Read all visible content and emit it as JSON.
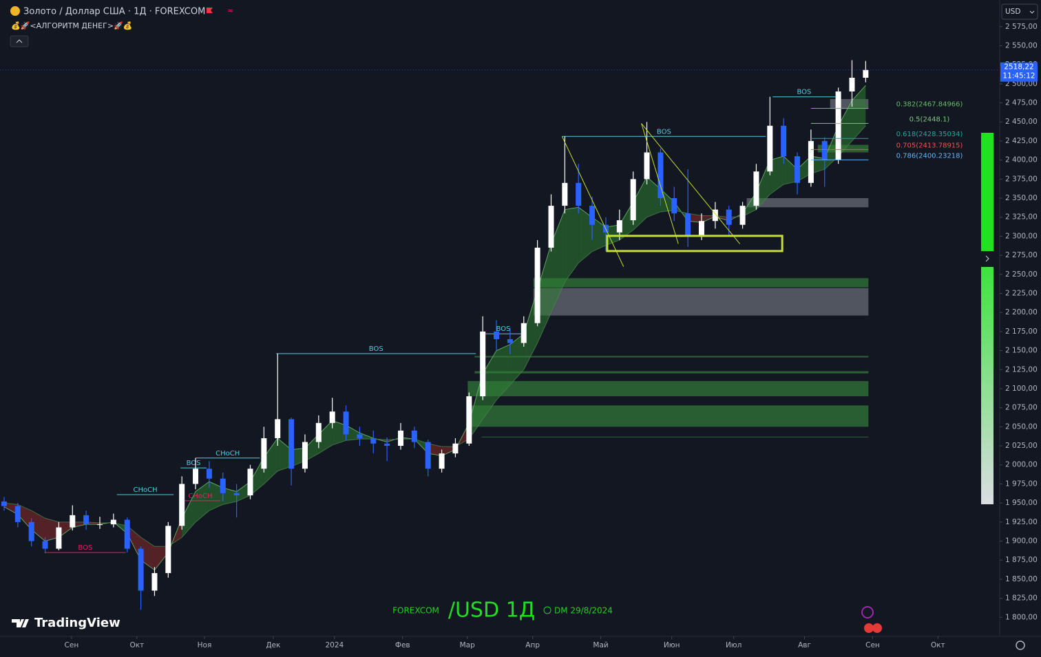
{
  "header": {
    "title": "Золото / Доллар США · 1Д · FOREXCOM",
    "indicator": "💰🚀<АЛГОРИТМ ДЕНЕГ>🚀💰",
    "currency": "USD"
  },
  "last_price": {
    "label": "2518,22",
    "timer": "11:45:12"
  },
  "watermark": {
    "exchange": "FOREXCOM",
    "symbol": "/USD 1Д",
    "date": "DM 29/8/2024"
  },
  "brand": "TradingView",
  "chart_data": {
    "type": "candlestick",
    "up_color": "#ffffff",
    "down_color": "#2962ff",
    "grid": false,
    "xlim": [
      -0.3,
      72.8
    ],
    "ylim": [
      1775,
      2610
    ],
    "xticks": [
      {
        "value": 4.93,
        "label": "Сен"
      },
      {
        "value": 9.71,
        "label": "Окт"
      },
      {
        "value": 14.65,
        "label": "Ноя"
      },
      {
        "value": 19.68,
        "label": "Дек"
      },
      {
        "value": 24.16,
        "label": "2024"
      },
      {
        "value": 29.14,
        "label": "Фев"
      },
      {
        "value": 33.87,
        "label": "Мар"
      },
      {
        "value": 38.65,
        "label": "Апр"
      },
      {
        "value": 43.63,
        "label": "Май"
      },
      {
        "value": 48.82,
        "label": "Июн"
      },
      {
        "value": 53.35,
        "label": "Июл"
      },
      {
        "value": 58.53,
        "label": "Авг"
      },
      {
        "value": 63.51,
        "label": "Сен"
      },
      {
        "value": 68.29,
        "label": "Окт"
      }
    ],
    "yticks": [
      {
        "value": 1800,
        "label": "1 800,00"
      },
      {
        "value": 1825,
        "label": "1 825,00"
      },
      {
        "value": 1850,
        "label": "1 850,00"
      },
      {
        "value": 1875,
        "label": "1 875,00"
      },
      {
        "value": 1900,
        "label": "1 900,00"
      },
      {
        "value": 1925,
        "label": "1 925,00"
      },
      {
        "value": 1950,
        "label": "1 950,00"
      },
      {
        "value": 1975,
        "label": "1 975,00"
      },
      {
        "value": 2000,
        "label": "2 000,00"
      },
      {
        "value": 2025,
        "label": "2 025,00"
      },
      {
        "value": 2050,
        "label": "2 050,00"
      },
      {
        "value": 2075,
        "label": "2 075,00"
      },
      {
        "value": 2100,
        "label": "2 100,00"
      },
      {
        "value": 2125,
        "label": "2 125,00"
      },
      {
        "value": 2150,
        "label": "2 150,00"
      },
      {
        "value": 2175,
        "label": "2 175,00"
      },
      {
        "value": 2200,
        "label": "2 200,00"
      },
      {
        "value": 2225,
        "label": "2 225,00"
      },
      {
        "value": 2250,
        "label": "2 250,00"
      },
      {
        "value": 2275,
        "label": "2 275,00"
      },
      {
        "value": 2300,
        "label": "2 300,00"
      },
      {
        "value": 2325,
        "label": "2 325,00"
      },
      {
        "value": 2350,
        "label": "2 350,00"
      },
      {
        "value": 2375,
        "label": "2 375,00"
      },
      {
        "value": 2400,
        "label": "2 400,00"
      },
      {
        "value": 2425,
        "label": "2 425,00"
      },
      {
        "value": 2450,
        "label": "2 450,00"
      },
      {
        "value": 2475,
        "label": "2 475,00"
      },
      {
        "value": 2500,
        "label": "2 500,00"
      },
      {
        "value": 2525,
        "label": "2 525,00"
      },
      {
        "value": 2550,
        "label": "2 550,00"
      },
      {
        "value": 2575,
        "label": "2 575,00"
      }
    ],
    "ohlc": [
      [
        1952,
        1958,
        1940,
        1946
      ],
      [
        1946,
        1950,
        1918,
        1925
      ],
      [
        1925,
        1930,
        1893,
        1900
      ],
      [
        1900,
        1905,
        1884,
        1890
      ],
      [
        1890,
        1925,
        1888,
        1918
      ],
      [
        1918,
        1947,
        1914,
        1934
      ],
      [
        1934,
        1940,
        1915,
        1922
      ],
      [
        1922,
        1932,
        1916,
        1922
      ],
      [
        1922,
        1936,
        1918,
        1928
      ],
      [
        1928,
        1931,
        1885,
        1890
      ],
      [
        1890,
        1893,
        1810,
        1835
      ],
      [
        1835,
        1866,
        1828,
        1858
      ],
      [
        1858,
        1925,
        1852,
        1920
      ],
      [
        1920,
        1985,
        1915,
        1975
      ],
      [
        1975,
        2009,
        1968,
        1995
      ],
      [
        1995,
        2005,
        1970,
        1982
      ],
      [
        1982,
        1990,
        1952,
        1963
      ],
      [
        1963,
        1975,
        1931,
        1960
      ],
      [
        1960,
        2000,
        1955,
        1995
      ],
      [
        1995,
        2050,
        1990,
        2035
      ],
      [
        2035,
        2146,
        2025,
        2060
      ],
      [
        2060,
        2062,
        1973,
        1995
      ],
      [
        1995,
        2040,
        1990,
        2030
      ],
      [
        2030,
        2065,
        2022,
        2055
      ],
      [
        2055,
        2088,
        2048,
        2070
      ],
      [
        2070,
        2078,
        2032,
        2040
      ],
      [
        2040,
        2050,
        2025,
        2035
      ],
      [
        2035,
        2045,
        2015,
        2028
      ],
      [
        2028,
        2036,
        2005,
        2025
      ],
      [
        2025,
        2055,
        2020,
        2045
      ],
      [
        2045,
        2050,
        2022,
        2030
      ],
      [
        2030,
        2033,
        1985,
        1995
      ],
      [
        1995,
        2020,
        1990,
        2015
      ],
      [
        2015,
        2035,
        2010,
        2028
      ],
      [
        2028,
        2095,
        2025,
        2090
      ],
      [
        2090,
        2195,
        2085,
        2175
      ],
      [
        2175,
        2190,
        2150,
        2165
      ],
      [
        2165,
        2180,
        2145,
        2160
      ],
      [
        2160,
        2195,
        2155,
        2186
      ],
      [
        2186,
        2295,
        2182,
        2285
      ],
      [
        2285,
        2355,
        2280,
        2340
      ],
      [
        2340,
        2431,
        2330,
        2370
      ],
      [
        2370,
        2395,
        2330,
        2340
      ],
      [
        2340,
        2352,
        2295,
        2315
      ],
      [
        2315,
        2325,
        2280,
        2305
      ],
      [
        2305,
        2335,
        2295,
        2321
      ],
      [
        2321,
        2385,
        2315,
        2375
      ],
      [
        2375,
        2450,
        2368,
        2410
      ],
      [
        2410,
        2415,
        2340,
        2350
      ],
      [
        2350,
        2365,
        2320,
        2330
      ],
      [
        2330,
        2388,
        2286,
        2300
      ],
      [
        2300,
        2330,
        2295,
        2320
      ],
      [
        2320,
        2345,
        2310,
        2335
      ],
      [
        2335,
        2340,
        2300,
        2315
      ],
      [
        2315,
        2345,
        2310,
        2340
      ],
      [
        2340,
        2395,
        2335,
        2385
      ],
      [
        2385,
        2483,
        2380,
        2445
      ],
      [
        2445,
        2455,
        2395,
        2405
      ],
      [
        2405,
        2410,
        2355,
        2370
      ],
      [
        2370,
        2440,
        2365,
        2425
      ],
      [
        2425,
        2430,
        2365,
        2400
      ],
      [
        2400,
        2495,
        2395,
        2490
      ],
      [
        2490,
        2531,
        2470,
        2508
      ],
      [
        2508,
        2530,
        2502,
        2518.22
      ]
    ],
    "ribbon": {
      "up_color": "#2e7d32",
      "down_color": "#8b2a2a",
      "fast": [
        1945,
        1935,
        1915,
        1900,
        1905,
        1918,
        1922,
        1922,
        1925,
        1910,
        1875,
        1862,
        1885,
        1930,
        1965,
        1978,
        1970,
        1965,
        1978,
        2010,
        2035,
        2020,
        2022,
        2040,
        2058,
        2052,
        2042,
        2035,
        2030,
        2036,
        2034,
        2015,
        2012,
        2020,
        2055,
        2120,
        2150,
        2158,
        2172,
        2230,
        2290,
        2335,
        2338,
        2325,
        2312,
        2315,
        2345,
        2378,
        2362,
        2345,
        2320,
        2318,
        2326,
        2320,
        2330,
        2358,
        2400,
        2405,
        2388,
        2405,
        2402,
        2445,
        2478,
        2498
      ],
      "slow": [
        1950,
        1948,
        1940,
        1930,
        1925,
        1925,
        1925,
        1924,
        1924,
        1920,
        1905,
        1893,
        1893,
        1905,
        1925,
        1940,
        1948,
        1952,
        1960,
        1975,
        1992,
        1998,
        2005,
        2015,
        2026,
        2032,
        2034,
        2034,
        2033,
        2034,
        2034,
        2028,
        2024,
        2024,
        2034,
        2060,
        2085,
        2105,
        2125,
        2160,
        2200,
        2240,
        2265,
        2280,
        2288,
        2295,
        2308,
        2325,
        2332,
        2334,
        2330,
        2327,
        2327,
        2325,
        2326,
        2335,
        2355,
        2368,
        2372,
        2382,
        2388,
        2405,
        2425,
        2445
      ]
    },
    "zones": [
      {
        "from": 2338,
        "to": 2350,
        "start": 54.3,
        "color": "#5d606b"
      },
      {
        "from": 2233,
        "to": 2245,
        "start": 38.7,
        "color": "#2e6b36"
      },
      {
        "from": 2196,
        "to": 2232,
        "start": 38.7,
        "color": "#5d606b"
      },
      {
        "from": 2141,
        "to": 2143,
        "start": 34.4,
        "color": "#2e6b36"
      },
      {
        "from": 2120,
        "to": 2123,
        "start": 34.4,
        "color": "#2e6b36"
      },
      {
        "from": 2090,
        "to": 2110,
        "start": 33.9,
        "color": "#2e6b36"
      },
      {
        "from": 2050,
        "to": 2078,
        "start": 33.9,
        "color": "#2e6b36"
      },
      {
        "from": 2036,
        "to": 2037,
        "start": 34.9,
        "color": "#2e6b36"
      },
      {
        "from": 2467,
        "to": 2480,
        "start": 60.4,
        "color": "#5d606b"
      },
      {
        "from": 2410,
        "to": 2420,
        "start": 59.5,
        "color": "#2e6b36"
      }
    ],
    "structures": [
      {
        "label": "BOS",
        "level": 2431,
        "start": 40.8,
        "end": 55.7,
        "color": "#4dd0e1"
      },
      {
        "label": "BOS",
        "level": 2483,
        "start": 56.2,
        "end": 60.8,
        "color": "#4dd0e1"
      },
      {
        "label": "BOS",
        "level": 2146,
        "start": 19.9,
        "end": 34.5,
        "color": "#4dd0e1"
      },
      {
        "label": "BOS",
        "level": 2172,
        "start": 35.1,
        "end": 37.9,
        "color": "#4dd0e1"
      },
      {
        "label": "CHoCH",
        "level": 1961,
        "start": 8.25,
        "end": 12.4,
        "color": "#4dd0e1"
      },
      {
        "label": "BOS",
        "level": 1996,
        "start": 12.9,
        "end": 14.8,
        "color": "#4dd0e1"
      },
      {
        "label": "CHoCH",
        "level": 2009,
        "start": 14.0,
        "end": 18.7,
        "color": "#4dd0e1"
      },
      {
        "label": "CHoCH",
        "level": 1953,
        "start": 12.9,
        "end": 15.8,
        "color": "#e91e63"
      },
      {
        "label": "BOS",
        "level": 1885,
        "start": 2.97,
        "end": 8.9,
        "color": "#e91e63"
      }
    ],
    "trendlines": [
      {
        "x": [
          40.8,
          45.3
        ],
        "y": [
          2431,
          2260
        ]
      },
      {
        "x": [
          46.6,
          49.3
        ],
        "y": [
          2448,
          2290
        ]
      },
      {
        "x": [
          46.6,
          53.8
        ],
        "y": [
          2448,
          2290
        ]
      }
    ],
    "trend_color": "#c6e030",
    "box": {
      "x": [
        44.1,
        56.9
      ],
      "y": [
        2280.6,
        2300.5
      ]
    },
    "fib_levels": [
      {
        "value": 2467.84966,
        "label": "0.382(2467.84966)",
        "color": "#66bb6a"
      },
      {
        "value": 2448.1,
        "label": "0.5(2448.1)",
        "color": "#81c784"
      },
      {
        "value": 2428.35034,
        "label": "0.618(2428.35034)",
        "color": "#26a69a"
      },
      {
        "value": 2413.78915,
        "label": "0.705(2413.78915)",
        "color": "#ef5350"
      },
      {
        "value": 2400.23218,
        "label": "0.786(2400.23218)",
        "color": "#64b5f6"
      }
    ]
  }
}
